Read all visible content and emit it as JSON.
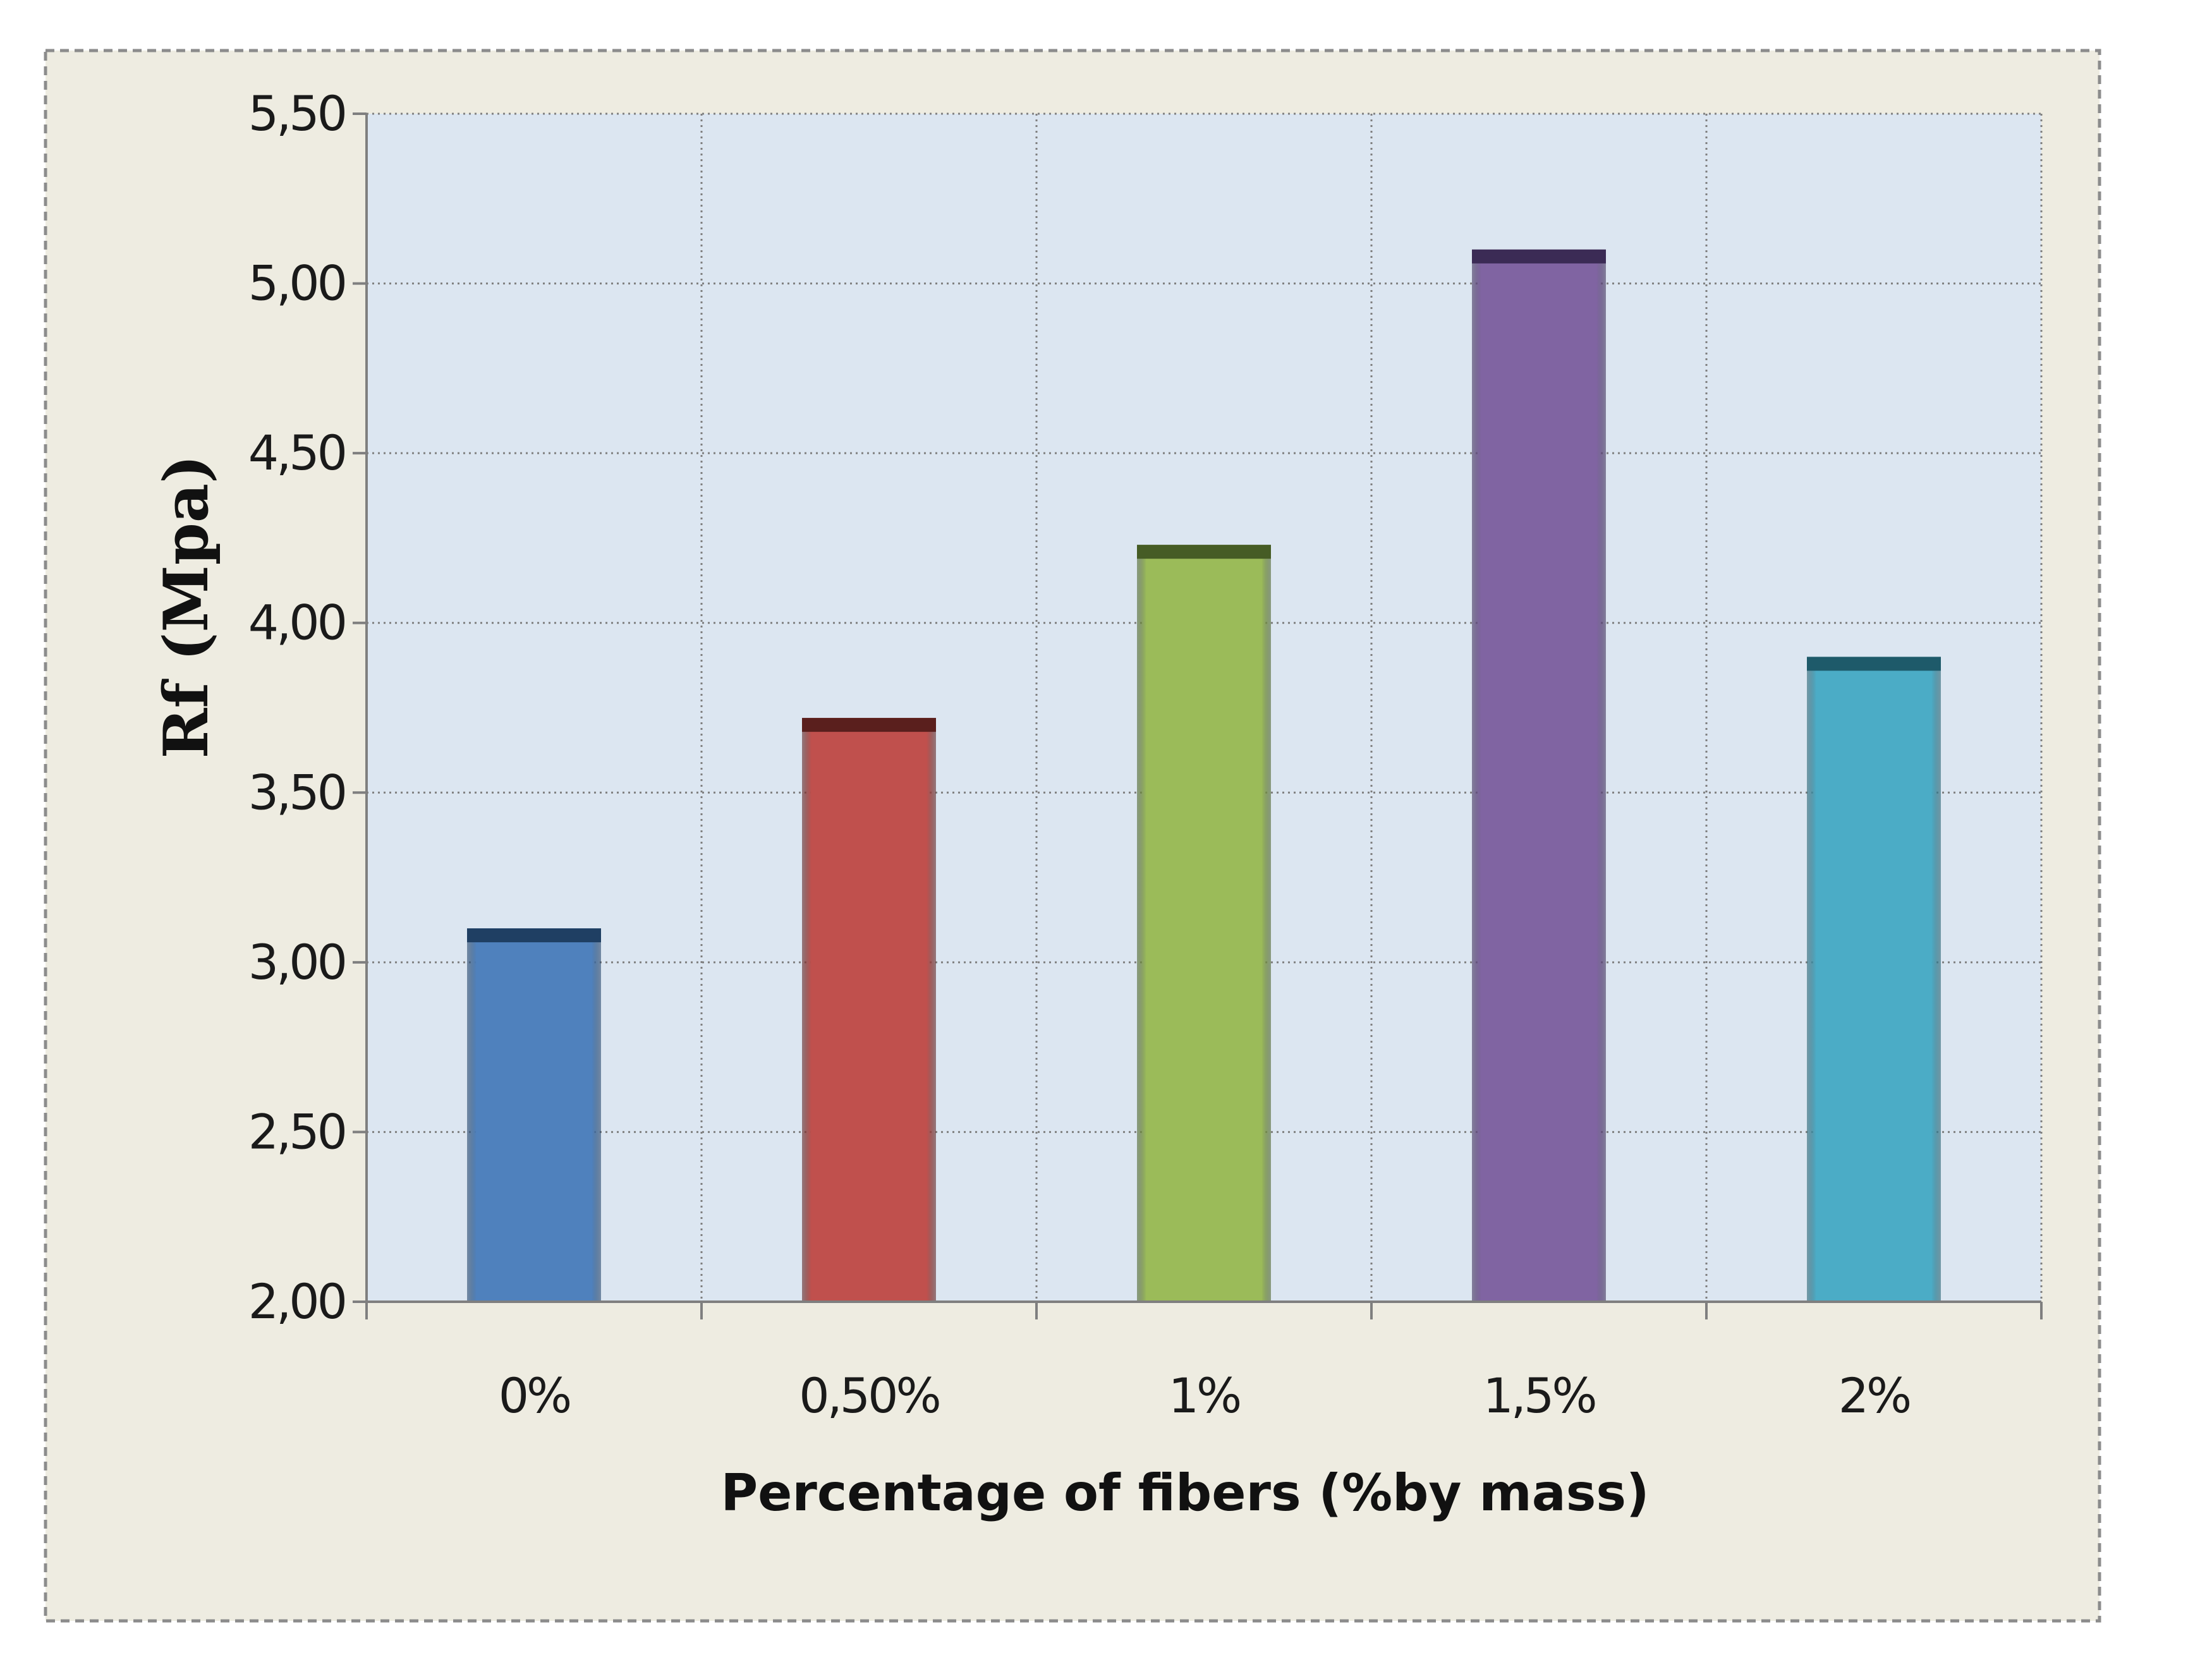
{
  "chart_data": {
    "type": "bar",
    "categories": [
      "0%",
      "0,50%",
      "1%",
      "1,5%",
      "2%"
    ],
    "values": [
      3.1,
      3.72,
      4.23,
      5.1,
      3.9
    ],
    "colors": [
      "#4f81bd",
      "#c0504d",
      "#9bbb59",
      "#8064a2",
      "#4bacc6"
    ],
    "top_colors": [
      "#1f3f63",
      "#5a1f1d",
      "#465c25",
      "#3b2b55",
      "#1e5a6a"
    ],
    "title": "",
    "xlabel": "Percentage of fibers (%by mass)",
    "ylabel": "Rf (Mpa)",
    "ylim": [
      2.0,
      5.5
    ],
    "yticks": [
      2.0,
      2.5,
      3.0,
      3.5,
      4.0,
      4.5,
      5.0,
      5.5
    ],
    "ytick_labels": [
      "2,00",
      "2,50",
      "3,00",
      "3,50",
      "4,00",
      "4,50",
      "5,00",
      "5,50"
    ],
    "grid": true,
    "legend": "none",
    "plot_background": "#dce6f1",
    "chart_background": "#eeece1"
  }
}
